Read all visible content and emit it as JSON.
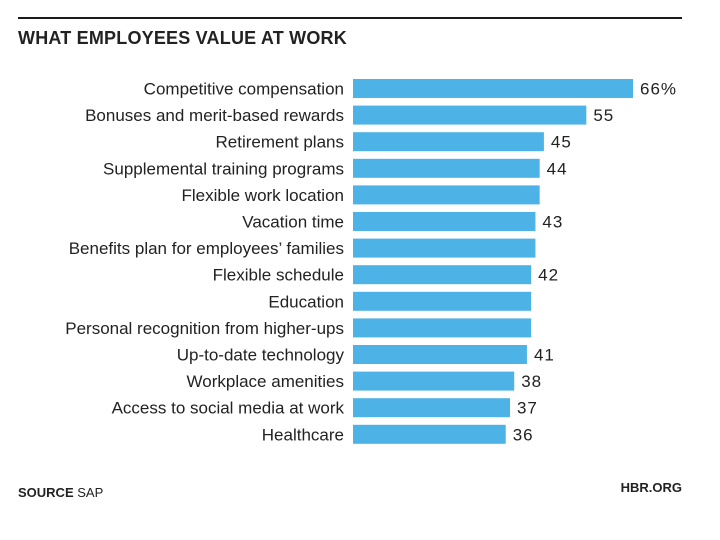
{
  "title": "WHAT EMPLOYEES VALUE AT WORK",
  "footer": {
    "source_label": "SOURCE",
    "source_value": "SAP",
    "brand": "HBR.ORG"
  },
  "colors": {
    "bar": "#4db3e6",
    "text": "#222222"
  },
  "chart_data": {
    "type": "bar",
    "orientation": "horizontal",
    "title": "WHAT EMPLOYEES VALUE AT WORK",
    "xlabel": "",
    "ylabel": "",
    "xlim": [
      0,
      66
    ],
    "categories": [
      "Competitive compensation",
      "Bonuses and merit-based rewards",
      "Retirement plans",
      "Supplemental training programs",
      "Flexible work location",
      "Vacation time",
      "Benefits plan for employees’ families",
      "Flexible schedule",
      "Education",
      "Personal recognition from higher-ups",
      "Up-to-date technology",
      "Workplace amenities",
      "Access to social media at work",
      "Healthcare"
    ],
    "values": [
      66,
      55,
      45,
      44,
      44,
      43,
      43,
      42,
      42,
      42,
      41,
      38,
      37,
      36
    ],
    "data_labels": [
      "66%",
      "55",
      "45",
      "44",
      "",
      "43",
      "",
      "42",
      "",
      "",
      "41",
      "38",
      "37",
      "36"
    ]
  }
}
